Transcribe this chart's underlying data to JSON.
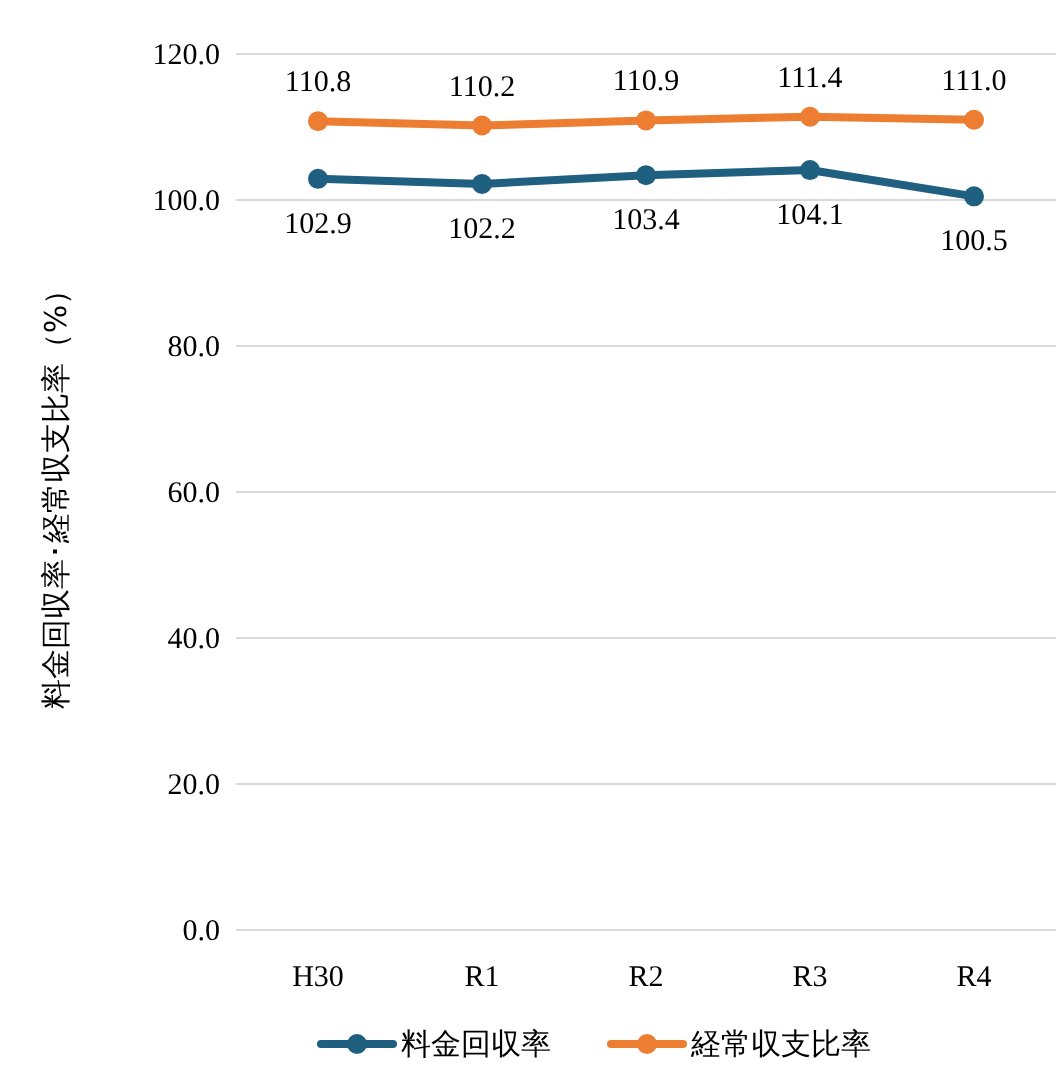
{
  "chart_data": {
    "type": "line",
    "ylabel": "料金回収率･経常収支比率（%）",
    "categories": [
      "H30",
      "R1",
      "R2",
      "R3",
      "R4"
    ],
    "series": [
      {
        "name": "料金回収率",
        "color": "#1f5f7f",
        "values": [
          102.9,
          102.2,
          103.4,
          104.1,
          100.5
        ],
        "value_labels": [
          "102.9",
          "102.2",
          "103.4",
          "104.1",
          "100.5"
        ]
      },
      {
        "name": "経常収支比率",
        "color": "#ed7d31",
        "values": [
          110.8,
          110.2,
          110.9,
          111.4,
          111.0
        ],
        "value_labels": [
          "110.8",
          "110.2",
          "110.9",
          "111.4",
          "111.0"
        ]
      }
    ],
    "ylim": [
      0,
      120
    ],
    "yticks": [
      {
        "value": 0,
        "label": "0.0"
      },
      {
        "value": 20,
        "label": "20.0"
      },
      {
        "value": 40,
        "label": "40.0"
      },
      {
        "value": 60,
        "label": "60.0"
      },
      {
        "value": 80,
        "label": "80.0"
      },
      {
        "value": 100,
        "label": "100.0"
      },
      {
        "value": 120,
        "label": "120.0"
      }
    ],
    "grid": "y",
    "legend": "bottom",
    "marker": "circle",
    "line_style": "solid"
  }
}
